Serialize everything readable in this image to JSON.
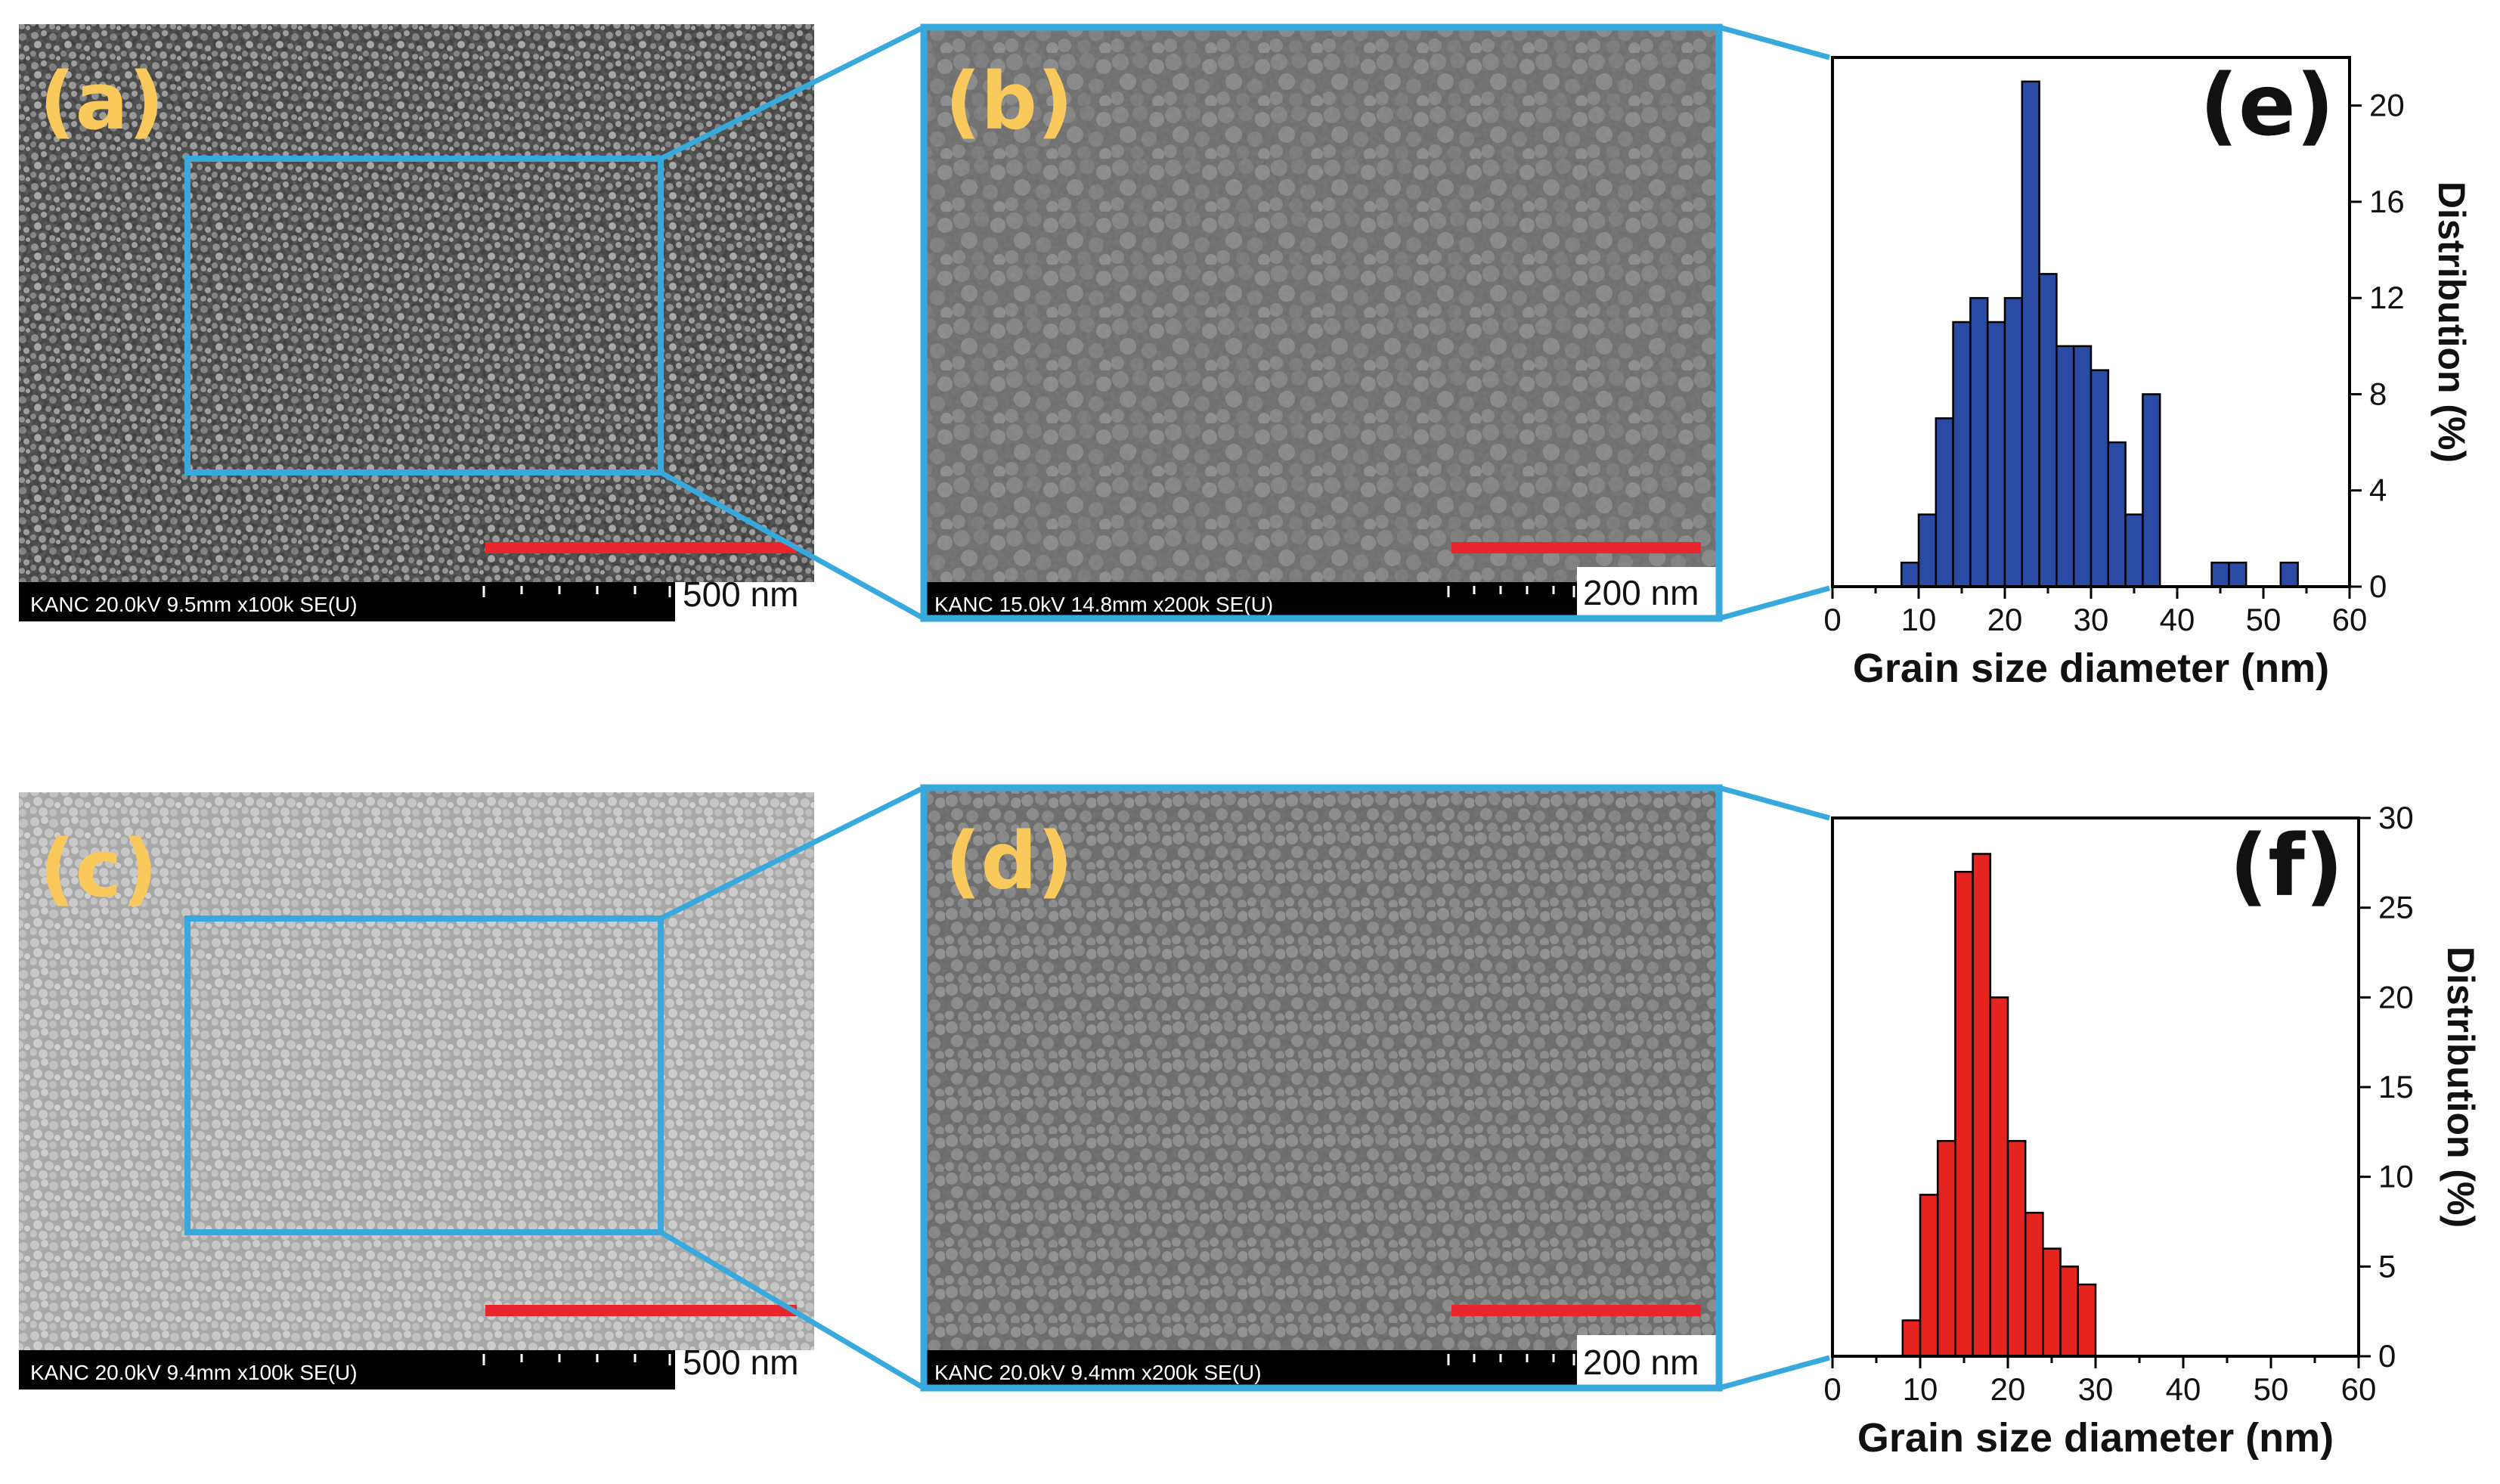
{
  "figure": {
    "rows": [
      {
        "overview_panel": {
          "label": "(a)",
          "metadata": "KANC 20.0kV 9.5mm x100k SE(U)",
          "scale_bar": "500 nm"
        },
        "zoom_panel": {
          "label": "(b)",
          "metadata": "KANC 15.0kV 14.8mm x200k SE(U)",
          "scale_bar": "200 nm"
        },
        "histogram_label": "(e)"
      },
      {
        "overview_panel": {
          "label": "(c)",
          "metadata": "KANC 20.0kV 9.4mm x100k SE(U)",
          "scale_bar": "500 nm"
        },
        "zoom_panel": {
          "label": "(d)",
          "metadata": "KANC 20.0kV 9.4mm x200k SE(U)",
          "scale_bar": "200 nm"
        },
        "histogram_label": "(f)"
      }
    ],
    "colors": {
      "zoom_outline": "#37a9dd",
      "scale_bar": "#e8262d",
      "panel_label": "#f9c95b",
      "series_e": "#2b4aa3",
      "series_f": "#e5231f"
    }
  },
  "chart_data": [
    {
      "type": "bar",
      "panel": "(e)",
      "xlabel": "Grain size diameter (nm)",
      "ylabel": "Distribution (%)",
      "xlim": [
        0,
        60
      ],
      "ylim": [
        0,
        22
      ],
      "xticks": [
        0,
        10,
        20,
        30,
        40,
        50,
        60
      ],
      "yticks": [
        0,
        4,
        8,
        12,
        16,
        20
      ],
      "bin_width": 2,
      "bin_centers": [
        9,
        11,
        13,
        15,
        17,
        19,
        21,
        23,
        25,
        27,
        29,
        31,
        33,
        35,
        37,
        39,
        41,
        43,
        45,
        47,
        49,
        51,
        53,
        55
      ],
      "values": [
        1,
        3,
        7,
        11,
        12,
        11,
        12,
        21,
        13,
        10,
        10,
        9,
        6,
        3,
        8,
        0,
        0,
        0,
        1,
        1,
        0,
        0,
        1,
        0
      ],
      "color": "#2b4aa3"
    },
    {
      "type": "bar",
      "panel": "(f)",
      "xlabel": "Grain size diameter (nm)",
      "ylabel": "Distribution (%)",
      "xlim": [
        0,
        60
      ],
      "ylim": [
        0,
        30
      ],
      "xticks": [
        0,
        10,
        20,
        30,
        40,
        50,
        60
      ],
      "yticks": [
        0,
        5,
        10,
        15,
        20,
        25,
        30
      ],
      "bin_width": 2,
      "bin_centers": [
        9,
        11,
        13,
        15,
        17,
        19,
        21,
        23,
        25,
        27,
        29,
        31
      ],
      "values": [
        2,
        9,
        12,
        27,
        28,
        20,
        12,
        8,
        6,
        5,
        4,
        0
      ],
      "color": "#e5231f"
    }
  ]
}
